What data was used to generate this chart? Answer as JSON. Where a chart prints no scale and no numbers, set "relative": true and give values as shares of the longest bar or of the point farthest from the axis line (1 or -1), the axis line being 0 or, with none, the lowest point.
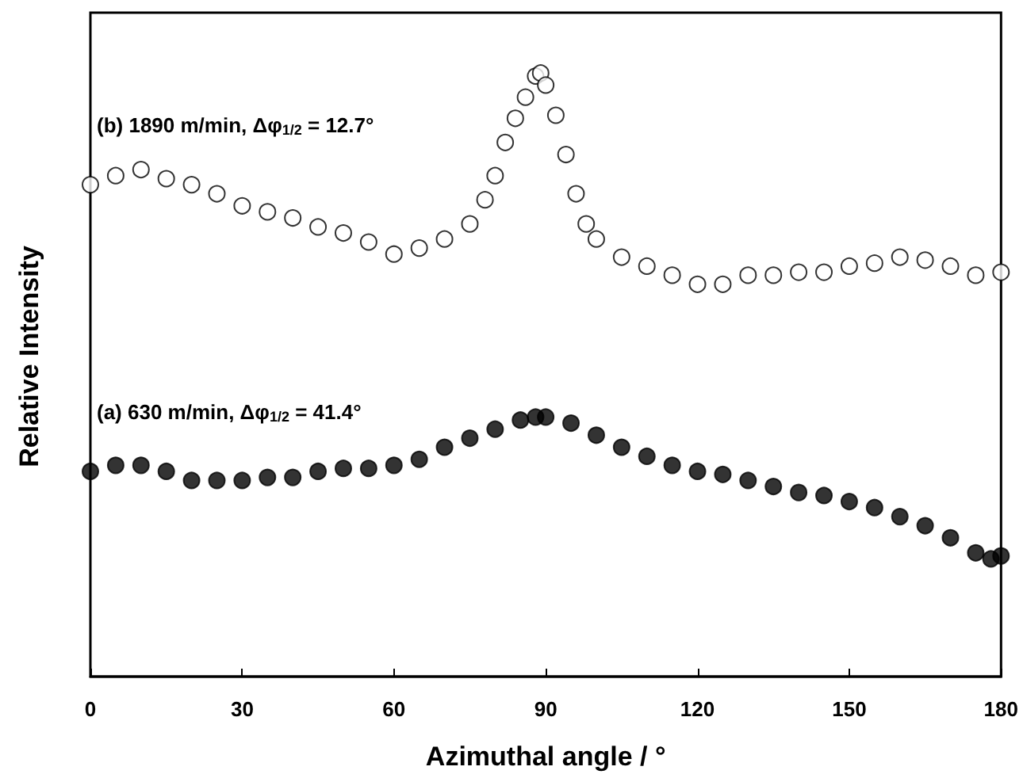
{
  "chart_data": {
    "type": "scatter",
    "relative": true,
    "xlabel": "Azimuthal angle / °",
    "ylabel": "Relative Intensity",
    "xlim": [
      0,
      180
    ],
    "xticks": [
      0,
      30,
      60,
      90,
      120,
      150,
      180
    ],
    "marker": "circle",
    "annotations": [
      "(a) 630 m/min, Δφ$_{1/2}$ = 41.4°",
      "(b) 1890 m/min, Δφ$_{1/2}$ = 12.7°"
    ],
    "series": [
      {
        "color": "#000000",
        "x": [
          0,
          5,
          10,
          15,
          20,
          25,
          30,
          35,
          40,
          45,
          50,
          55,
          60,
          65,
          70,
          75,
          80,
          85,
          88,
          90,
          95,
          100,
          105,
          110,
          115,
          120,
          125,
          130,
          135,
          140,
          145,
          150,
          155,
          160,
          165,
          170,
          175,
          178,
          180
        ],
        "values": [
          0.34,
          0.35,
          0.35,
          0.34,
          0.325,
          0.325,
          0.325,
          0.33,
          0.33,
          0.34,
          0.345,
          0.345,
          0.35,
          0.36,
          0.38,
          0.395,
          0.41,
          0.425,
          0.43,
          0.43,
          0.42,
          0.4,
          0.38,
          0.365,
          0.35,
          0.34,
          0.335,
          0.325,
          0.315,
          0.305,
          0.3,
          0.29,
          0.28,
          0.265,
          0.25,
          0.23,
          0.205,
          0.195,
          0.2
        ]
      },
      {
        "color": "#ffffff",
        "x": [
          0,
          5,
          10,
          15,
          20,
          25,
          30,
          35,
          40,
          45,
          50,
          55,
          60,
          65,
          70,
          75,
          78,
          80,
          82,
          84,
          86,
          88,
          89,
          90,
          92,
          94,
          96,
          98,
          100,
          105,
          110,
          115,
          120,
          125,
          130,
          135,
          140,
          145,
          150,
          155,
          160,
          165,
          170,
          175,
          180
        ],
        "values": [
          0.815,
          0.83,
          0.84,
          0.825,
          0.815,
          0.8,
          0.78,
          0.77,
          0.76,
          0.745,
          0.735,
          0.72,
          0.7,
          0.71,
          0.725,
          0.75,
          0.79,
          0.83,
          0.885,
          0.925,
          0.96,
          0.995,
          1,
          0.98,
          0.93,
          0.865,
          0.8,
          0.75,
          0.725,
          0.695,
          0.68,
          0.665,
          0.65,
          0.65,
          0.665,
          0.665,
          0.67,
          0.67,
          0.68,
          0.685,
          0.695,
          0.69,
          0.68,
          0.665,
          0.67
        ]
      }
    ]
  }
}
